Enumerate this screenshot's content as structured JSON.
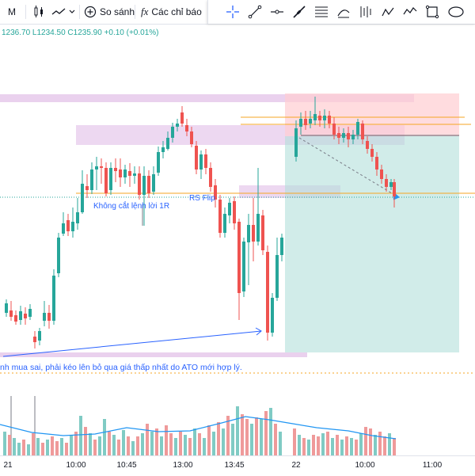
{
  "toolbar": {
    "interval": "M",
    "compare_label": "So sánh",
    "indicators_label": "Các chỉ báo",
    "fx_icon": "fx"
  },
  "legend": {
    "ohlc": "1236.70  L1234.50  C1235.90  +0.10 (+0.01%)"
  },
  "annotations": {
    "no_stop": "Không cắt lệnh lời 1R",
    "rs_flip": "RS Flip",
    "bottom_note": "nh mua sai, phải kéo lên bỏ qua giá thấp nhất do ATO mới hợp lý."
  },
  "time_axis": [
    "21",
    "10:00",
    "10:45",
    "13:00",
    "13:45",
    "22",
    "10:00",
    "11:00"
  ],
  "colors": {
    "up": "#26a69a",
    "down": "#ef5350",
    "zone_purple": "#e1bee7",
    "long_profit": "#b2dfdb",
    "long_stop": "#ffcdd2",
    "annotation": "#2962ff",
    "level_orange": "#f5a623"
  },
  "icons": [
    "candle-type-icon",
    "line-chart-icon",
    "chevron-down-icon",
    "plus-circle-icon",
    "fx-icon",
    "crosshair-icon",
    "trend-line-icon",
    "horizontal-line-icon",
    "brush-icon",
    "fib-icon",
    "curve-icon",
    "long-position-icon",
    "pattern-icon",
    "rectangle-icon",
    "ellipse-icon"
  ]
}
